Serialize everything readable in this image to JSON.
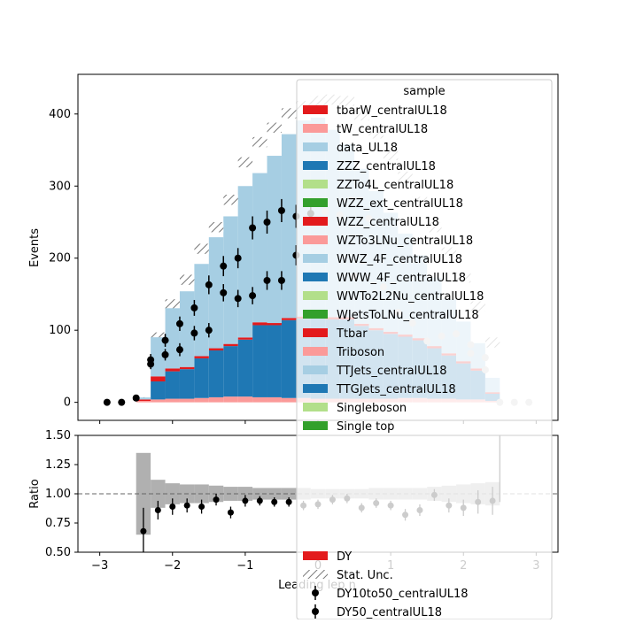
{
  "chart_data": [
    {
      "type": "bar",
      "panel": "main",
      "ylabel": "Events",
      "ylim": [
        -25,
        455
      ],
      "yticks": [
        0,
        100,
        200,
        300,
        400
      ],
      "xlim": [
        -3.3,
        3.3
      ],
      "bin_edges": [
        -2.5,
        -2.3,
        -2.1,
        -1.9,
        -1.7,
        -1.5,
        -1.3,
        -1.1,
        -0.9,
        -0.7,
        -0.5,
        -0.3,
        -0.1,
        0.1,
        0.3,
        0.5,
        0.7,
        0.9,
        1.1,
        1.3,
        1.5,
        1.7,
        1.9,
        2.1,
        2.3,
        2.5
      ],
      "series": [
        {
          "name": "tbarW_centralUL18",
          "color": "#e31a1c",
          "values": [
            0,
            0,
            0,
            0,
            0,
            0,
            0,
            0,
            0,
            0,
            0,
            0,
            0,
            0,
            0,
            0,
            0,
            0,
            0,
            0,
            0,
            0,
            0,
            0,
            0
          ]
        },
        {
          "name": "tW_centralUL18",
          "color": "#fb9a99",
          "values": [
            2,
            4,
            5,
            5,
            6,
            7,
            8,
            8,
            7,
            7,
            6,
            6,
            5,
            5,
            5,
            5,
            5,
            5,
            6,
            6,
            5,
            5,
            4,
            4,
            2
          ]
        },
        {
          "name": "ZZZ_centralUL18",
          "color": "#1f78b4",
          "values": [
            0,
            25,
            38,
            41,
            55,
            65,
            70,
            79,
            100,
            100,
            108,
            110,
            113,
            110,
            110,
            101,
            95,
            90,
            85,
            80,
            70,
            60,
            50,
            40,
            10
          ]
        },
        {
          "name": "WWW_4F_centralUL18",
          "color": "#1f78b4",
          "values": [
            0,
            0,
            0,
            0,
            0,
            0,
            0,
            0,
            0,
            0,
            0,
            0,
            0,
            0,
            0,
            0,
            0,
            0,
            0,
            0,
            0,
            0,
            0,
            0,
            0
          ]
        },
        {
          "name": "WZZ_centralUL18",
          "color": "#e31a1c",
          "values": [
            2,
            7,
            4,
            3,
            3,
            3,
            3,
            3,
            4,
            3,
            3,
            3,
            3,
            3,
            3,
            3,
            3,
            3,
            3,
            3,
            3,
            3,
            3,
            3,
            2
          ]
        },
        {
          "name": "TTJets_centralUL18",
          "color": "#a6cee3",
          "values": [
            3,
            58,
            89,
            105,
            128,
            154,
            177,
            210,
            207,
            232,
            255,
            272,
            274,
            260,
            240,
            215,
            190,
            165,
            140,
            115,
            95,
            75,
            55,
            35,
            20
          ]
        }
      ],
      "stat_unc_top": [
        7,
        97,
        143,
        177,
        220,
        250,
        288,
        340,
        368,
        388,
        408,
        418,
        425,
        427,
        425,
        405,
        380,
        350,
        320,
        285,
        250,
        215,
        180,
        140,
        90
      ],
      "data_points": {
        "x": [
          -2.9,
          -2.7,
          -2.5,
          -2.3,
          -2.3,
          -2.1,
          -2.1,
          -1.9,
          -1.9,
          -1.7,
          -1.7,
          -1.5,
          -1.5,
          -1.3,
          -1.3,
          -1.1,
          -1.1,
          -0.9,
          -0.9,
          -0.7,
          -0.7,
          -0.5,
          -0.5,
          -0.3,
          -0.3,
          -0.1
        ],
        "y": [
          0,
          0,
          6,
          53,
          59,
          86,
          66,
          109,
          73,
          131,
          96,
          163,
          100,
          189,
          152,
          200,
          144,
          242,
          148,
          250,
          169,
          266,
          169,
          258,
          204,
          262
        ],
        "yerr": [
          1,
          1,
          2.5,
          7,
          8,
          9,
          8,
          10,
          9,
          11,
          10,
          13,
          10,
          14,
          12,
          14,
          12,
          16,
          12,
          16,
          13,
          16,
          13,
          16,
          14,
          16
        ]
      },
      "faded_points": {
        "x": [
          0.1,
          0.3,
          0.5,
          0.7,
          0.9,
          1.1,
          1.3,
          1.5,
          1.7,
          1.9,
          2.1,
          2.1,
          2.3,
          2.3,
          2.5,
          2.7,
          2.9
        ],
        "y": [
          265,
          260,
          175,
          255,
          160,
          125,
          110,
          85,
          92,
          95,
          80,
          68,
          62,
          45,
          0,
          0,
          0
        ]
      },
      "legend": {
        "title": "sample",
        "placement": "upper-right",
        "entries": [
          {
            "name": "tbarW_centralUL18",
            "color": "#e31a1c",
            "kind": "patch"
          },
          {
            "name": "tW_centralUL18",
            "color": "#fb9a99",
            "kind": "patch"
          },
          {
            "name": "data_UL18",
            "color": "#a6cee3",
            "kind": "patch"
          },
          {
            "name": "ZZZ_centralUL18",
            "color": "#1f78b4",
            "kind": "patch"
          },
          {
            "name": "ZZTo4L_centralUL18",
            "color": "#b2df8a",
            "kind": "patch"
          },
          {
            "name": "WZZ_ext_centralUL18",
            "color": "#33a02c",
            "kind": "patch"
          },
          {
            "name": "WZZ_centralUL18",
            "color": "#e31a1c",
            "kind": "patch"
          },
          {
            "name": "WZTo3LNu_centralUL18",
            "color": "#fb9a99",
            "kind": "patch"
          },
          {
            "name": "WWZ_4F_centralUL18",
            "color": "#a6cee3",
            "kind": "patch"
          },
          {
            "name": "WWW_4F_centralUL18",
            "color": "#1f78b4",
            "kind": "patch"
          },
          {
            "name": "WWTo2L2Nu_centralUL18",
            "color": "#b2df8a",
            "kind": "patch"
          },
          {
            "name": "WJetsToLNu_centralUL18",
            "color": "#33a02c",
            "kind": "patch"
          },
          {
            "name": "Ttbar",
            "color": "#e31a1c",
            "kind": "patch"
          },
          {
            "name": "Triboson",
            "color": "#fb9a99",
            "kind": "patch"
          },
          {
            "name": "TTJets_centralUL18",
            "color": "#a6cee3",
            "kind": "patch"
          },
          {
            "name": "TTGJets_centralUL18",
            "color": "#1f78b4",
            "kind": "patch"
          },
          {
            "name": "Singleboson",
            "color": "#b2df8a",
            "kind": "patch"
          },
          {
            "name": "Single top",
            "color": "#33a02c",
            "kind": "patch"
          }
        ]
      }
    },
    {
      "type": "scatter",
      "panel": "ratio",
      "ylabel": "Ratio",
      "xlabel": "Leading lep η",
      "ylim": [
        0.5,
        1.5
      ],
      "yticks": [
        0.5,
        0.75,
        1.0,
        1.25,
        1.5
      ],
      "ytick_labels": [
        "0.50",
        "0.75",
        "1.00",
        "1.25",
        "1.50"
      ],
      "xlim": [
        -3.3,
        3.3
      ],
      "xticks": [
        -3,
        -2,
        -1,
        0,
        1,
        2,
        3
      ],
      "xtick_labels": [
        "−3",
        "−2",
        "−1",
        "0",
        "1",
        "2",
        "3"
      ],
      "reference_line": 1.0,
      "unc_band_halfwidth": [
        0.35,
        0.12,
        0.09,
        0.08,
        0.08,
        0.07,
        0.06,
        0.06,
        0.05,
        0.05,
        0.05,
        0.05,
        0.04,
        0.04,
        0.04,
        0.04,
        0.05,
        0.05,
        0.05,
        0.05,
        0.06,
        0.07,
        0.08,
        0.09,
        0.1
      ],
      "points": {
        "x": [
          -2.4,
          -2.2,
          -2.0,
          -1.8,
          -1.6,
          -1.4,
          -1.2,
          -1.0,
          -0.8,
          -0.6,
          -0.4,
          -0.2,
          0.0,
          0.2,
          0.4,
          0.6,
          0.8,
          1.0,
          1.2,
          1.4,
          1.6,
          1.8,
          2.0,
          2.2,
          2.4
        ],
        "y": [
          0.68,
          0.86,
          0.89,
          0.9,
          0.89,
          0.95,
          0.84,
          0.94,
          0.94,
          0.93,
          0.93,
          0.9,
          0.91,
          0.95,
          0.96,
          0.88,
          0.92,
          0.9,
          0.82,
          0.86,
          0.99,
          0.9,
          0.88,
          0.93,
          0.94
        ],
        "yerr": [
          0.2,
          0.08,
          0.07,
          0.06,
          0.06,
          0.05,
          0.05,
          0.05,
          0.04,
          0.04,
          0.04,
          0.04,
          0.04,
          0.04,
          0.04,
          0.04,
          0.04,
          0.04,
          0.05,
          0.05,
          0.05,
          0.06,
          0.07,
          0.1,
          0.12
        ]
      },
      "legend": {
        "entries": [
          {
            "name": "DY",
            "color": "#e31a1c",
            "kind": "patch"
          },
          {
            "name": "Stat. Unc.",
            "color": "#888888",
            "kind": "hatch"
          },
          {
            "name": "DY10to50_centralUL18",
            "color": "#000000",
            "kind": "errorbar"
          },
          {
            "name": "DY50_centralUL18",
            "color": "#000000",
            "kind": "errorbar"
          }
        ]
      }
    }
  ]
}
